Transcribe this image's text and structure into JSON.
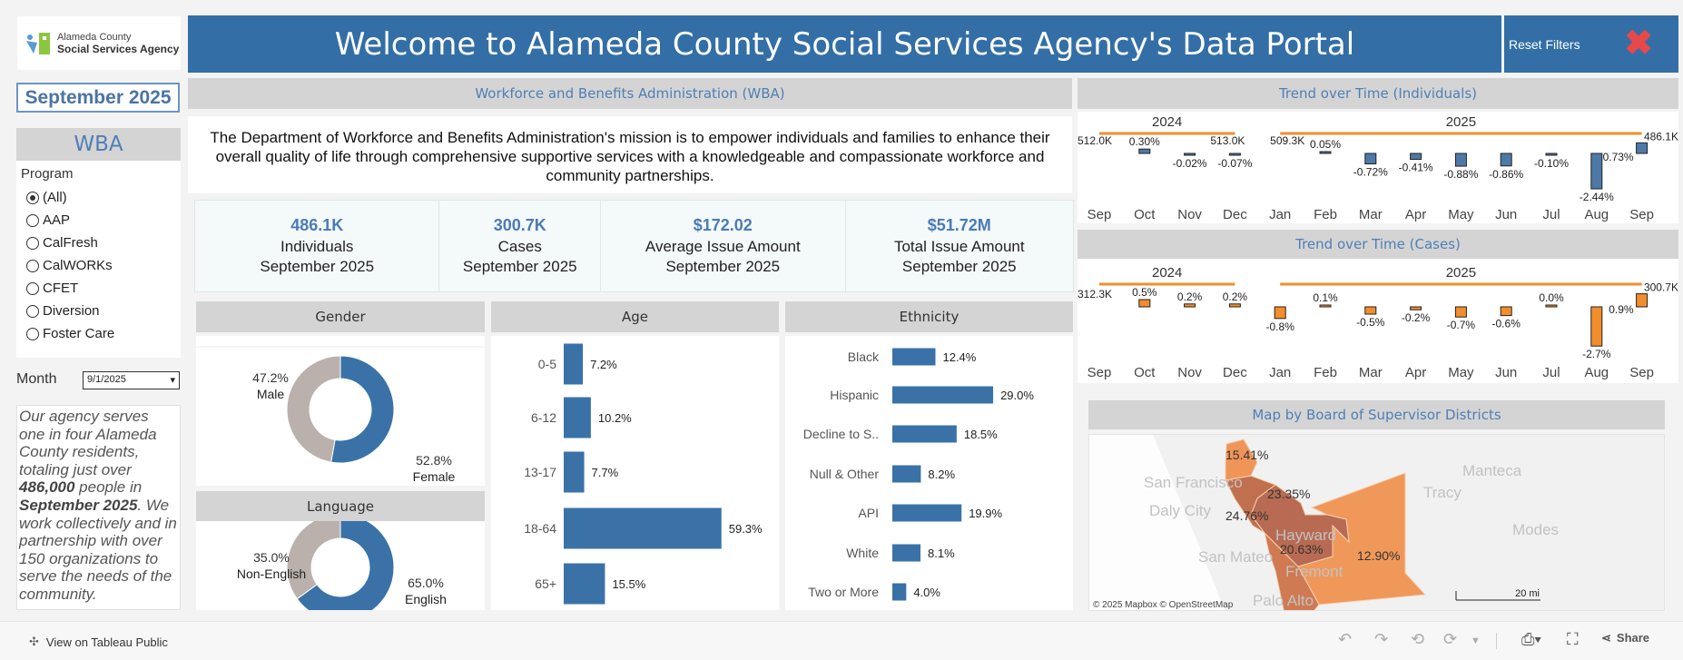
{
  "logo": {
    "line1": "Alameda County",
    "line2": "Social Services Agency"
  },
  "banner": {
    "title": "Welcome to Alameda County Social Services Agency's Data Portal"
  },
  "reset": {
    "label": "Reset Filters",
    "icon": "close-x-icon",
    "icon_color": "#e8484a"
  },
  "sidebar": {
    "period": "September 2025",
    "section": "WBA",
    "program_label": "Program",
    "programs": [
      {
        "label": "(All)",
        "selected": true
      },
      {
        "label": "AAP",
        "selected": false
      },
      {
        "label": "CalFresh",
        "selected": false
      },
      {
        "label": "CalWORKs",
        "selected": false
      },
      {
        "label": "CFET",
        "selected": false
      },
      {
        "label": "Diversion",
        "selected": false
      },
      {
        "label": "Foster Care",
        "selected": false
      }
    ],
    "month_label": "Month",
    "month_value": "9/1/2025",
    "blurb": {
      "p1": "Our agency serves one in four Alameda County residents, totaling just over ",
      "b1": "486,000",
      "p2": " people in ",
      "b2": "September 2025",
      "p3": ". We work collectively and in partnership with over 150 organizations to serve the needs of the community."
    }
  },
  "wba": {
    "header": "Workforce and Benefits Administration (WBA)",
    "mission": "The Department of Workforce and Benefits Administration's mission is to empower individuals and families to enhance their overall quality of life through comprehensive supportive services with a knowledgeable and compassionate workforce and community partnerships."
  },
  "kpis": [
    {
      "value": "486.1K",
      "label": "Individuals",
      "period": "September 2025"
    },
    {
      "value": "300.7K",
      "label": "Cases",
      "period": "September 2025"
    },
    {
      "value": "$172.02",
      "label": "Average Issue Amount",
      "period": "September 2025"
    },
    {
      "value": "$51.72M",
      "label": "Total Issue Amount",
      "period": "September 2025"
    }
  ],
  "headers": {
    "gender": "Gender",
    "language": "Language",
    "age": "Age",
    "ethnicity": "Ethnicity",
    "trend_individuals": "Trend over Time (Individuals)",
    "trend_cases": "Trend over Time (Cases)",
    "map": "Map by Board of Supervisor Districts"
  },
  "colors": {
    "primary": "#336fa6",
    "bar_blue": "#3a72a8",
    "gray_slice": "#bab0ac",
    "orange": "#f28e2b",
    "header_bg": "#d4d4d4"
  },
  "chart_data": [
    {
      "id": "gender",
      "type": "pie",
      "donut": true,
      "categories": [
        "Female",
        "Male"
      ],
      "values": [
        52.8,
        47.2
      ],
      "labels": [
        "52.8%",
        "47.2%"
      ]
    },
    {
      "id": "language",
      "type": "pie",
      "donut": true,
      "categories": [
        "English",
        "Non-English"
      ],
      "values": [
        65.0,
        35.0
      ],
      "labels": [
        "65.0%",
        "35.0%"
      ]
    },
    {
      "id": "age",
      "type": "bar",
      "orientation": "horizontal",
      "categories": [
        "0-5",
        "6-12",
        "13-17",
        "18-64",
        "65+"
      ],
      "values": [
        7.2,
        10.2,
        7.7,
        59.3,
        15.5
      ],
      "labels": [
        "7.2%",
        "10.2%",
        "7.7%",
        "59.3%",
        "15.5%"
      ]
    },
    {
      "id": "ethnicity",
      "type": "bar",
      "orientation": "horizontal",
      "categories": [
        "Black",
        "Hispanic",
        "Decline to S..",
        "Null & Other",
        "API",
        "White",
        "Two or More"
      ],
      "values": [
        12.4,
        29.0,
        18.5,
        8.2,
        19.9,
        8.1,
        4.0
      ],
      "labels": [
        "12.4%",
        "29.0%",
        "18.5%",
        "8.2%",
        "19.9%",
        "8.1%",
        "4.0%"
      ]
    },
    {
      "id": "trend_individuals",
      "type": "bar",
      "x": [
        "Sep",
        "Oct",
        "Nov",
        "Dec",
        "Jan",
        "Feb",
        "Mar",
        "Apr",
        "May",
        "Jun",
        "Jul",
        "Aug",
        "Sep"
      ],
      "years": [
        {
          "label": "2024",
          "from": 0,
          "to": 3
        },
        {
          "label": "2025",
          "from": 4,
          "to": 12
        }
      ],
      "values": [
        null,
        0.3,
        -0.02,
        -0.07,
        null,
        0.05,
        -0.72,
        -0.41,
        -0.88,
        -0.86,
        -0.1,
        -2.44,
        0.73
      ],
      "labels": [
        null,
        "0.30%",
        "-0.02%",
        "-0.07%",
        null,
        "0.05%",
        "-0.72%",
        "-0.41%",
        "-0.88%",
        "-0.86%",
        "-0.10%",
        "-2.44%",
        "0.73%"
      ],
      "value_labels": [
        "512.0K",
        null,
        null,
        "513.0K",
        "509.3K",
        null,
        null,
        null,
        null,
        null,
        null,
        null,
        "486.1K"
      ],
      "color": "#4e79a7"
    },
    {
      "id": "trend_cases",
      "type": "bar",
      "x": [
        "Sep",
        "Oct",
        "Nov",
        "Dec",
        "Jan",
        "Feb",
        "Mar",
        "Apr",
        "May",
        "Jun",
        "Jul",
        "Aug",
        "Sep"
      ],
      "years": [
        {
          "label": "2024",
          "from": 0,
          "to": 3
        },
        {
          "label": "2025",
          "from": 4,
          "to": 12
        }
      ],
      "values": [
        null,
        0.5,
        0.2,
        0.2,
        -0.8,
        0.1,
        -0.5,
        -0.2,
        -0.7,
        -0.6,
        0.0,
        -2.7,
        0.9
      ],
      "labels": [
        null,
        "0.5%",
        "0.2%",
        "0.2%",
        "-0.8%",
        "0.1%",
        "-0.5%",
        "-0.2%",
        "-0.7%",
        "-0.6%",
        "0.0%",
        "-2.7%",
        "0.9%"
      ],
      "value_labels": [
        "312.3K",
        null,
        null,
        null,
        null,
        null,
        null,
        null,
        null,
        null,
        null,
        null,
        "300.7K"
      ],
      "color": "#f28e2b"
    }
  ],
  "map": {
    "districts": [
      "15.41%",
      "23.35%",
      "24.76%",
      "20.63%",
      "12.90%"
    ],
    "places": [
      "San Francisco",
      "Daly City",
      "San Mateo",
      "Palo Alto",
      "Hayward",
      "Fremont",
      "Tracy",
      "Manteca",
      "Modes"
    ],
    "attribution": "© 2025 Mapbox © OpenStreetMap",
    "scale": "20 mi"
  },
  "footer": {
    "view_on": "View on Tableau Public",
    "share": "Share"
  }
}
